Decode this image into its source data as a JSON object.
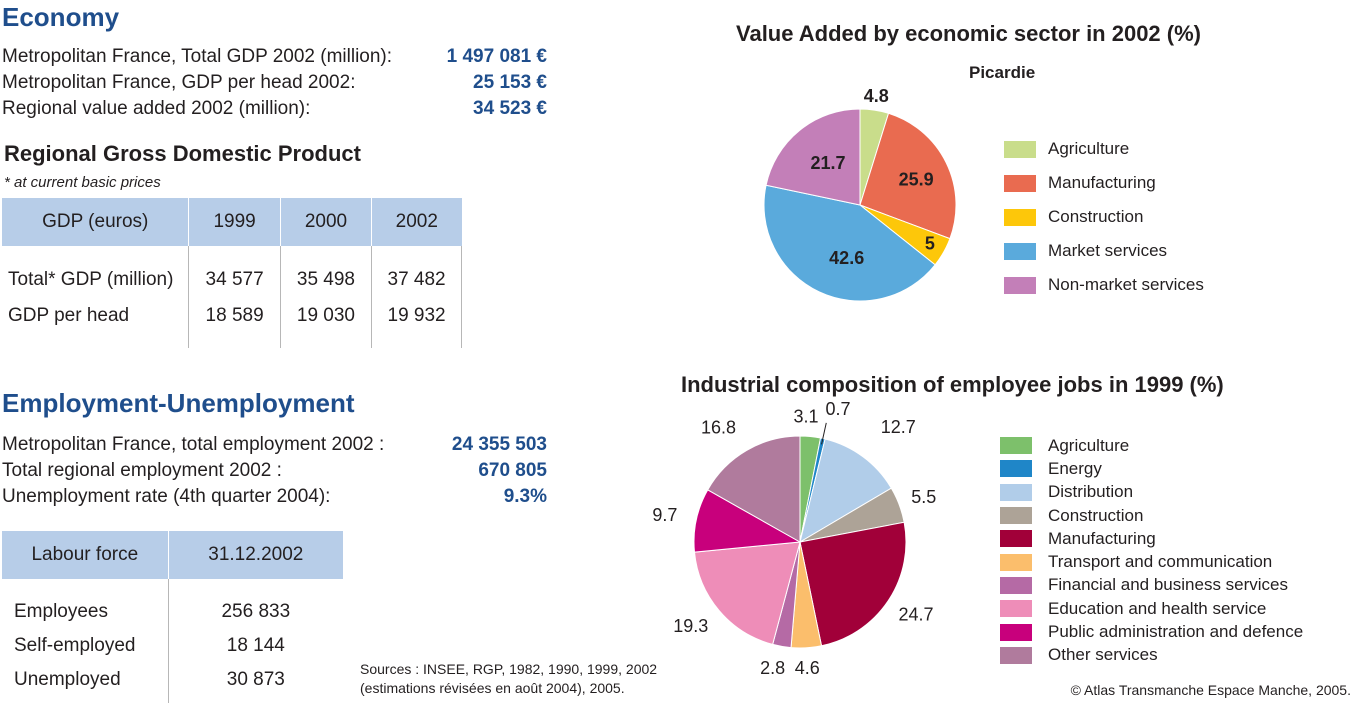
{
  "economy": {
    "title": "Economy",
    "rows": [
      {
        "label": "Metropolitan France, Total GDP 2002 (million):",
        "value": "1 497 081 €"
      },
      {
        "label": "Metropolitan France, GDP per head 2002:",
        "value": "25 153 €"
      },
      {
        "label": "Regional value added 2002 (million):",
        "value": "34 523 €"
      }
    ]
  },
  "gdp_table": {
    "title": "Regional Gross Domestic Product",
    "subtitle": "* at current basic prices",
    "headers": [
      "GDP (euros)",
      "1999",
      "2000",
      "2002"
    ],
    "rows": [
      [
        "Total* GDP (million)",
        "34 577",
        "35 498",
        "37 482"
      ],
      [
        "GDP per head",
        "18 589",
        "19 030",
        "19 932"
      ]
    ]
  },
  "employment": {
    "title": "Employment-Unemployment",
    "rows": [
      {
        "label": "Metropolitan France, total employment 2002 :",
        "value": "24 355 503"
      },
      {
        "label": "Total regional employment 2002 :",
        "value": "670 805"
      },
      {
        "label": "Unemployment rate (4th quarter 2004):",
        "value": "9.3%"
      }
    ]
  },
  "labour_table": {
    "headers": [
      "Labour force",
      "31.12.2002"
    ],
    "rows": [
      [
        "Employees",
        "256 833"
      ],
      [
        "Self-employed",
        "18 144"
      ],
      [
        "Unemployed",
        "30 873"
      ]
    ]
  },
  "sources": {
    "line1": "Sources : INSEE, RGP, 1982, 1990, 1999, 2002",
    "line2": "(estimations révisées en août 2004), 2005."
  },
  "copyright": "© Atlas Transmanche Espace Manche, 2005.",
  "chart_data": [
    {
      "type": "pie",
      "title": "Value Added by economic sector in 2002 (%)",
      "subtitle": "Picardie",
      "legend_position": "right",
      "categories": [
        "Agriculture",
        "Manufacturing",
        "Construction",
        "Market services",
        "Non-market services"
      ],
      "values": [
        4.8,
        25.9,
        5,
        42.6,
        21.7
      ],
      "value_labels": [
        "4.8",
        "25.9",
        "5",
        "42.6",
        "21.7"
      ],
      "colors": [
        "#c9dd8b",
        "#e96b50",
        "#fdc70a",
        "#5aaadc",
        "#c37fb8"
      ]
    },
    {
      "type": "pie",
      "title": "Industrial composition of employee jobs in 1999 (%)",
      "legend_position": "right",
      "categories": [
        "Agriculture",
        "Energy",
        "Distribution",
        "Construction",
        "Manufacturing",
        "Transport and communication",
        "Financial and business services",
        "Education and health service",
        "Public administration and defence",
        "Other services"
      ],
      "values": [
        3.1,
        0.7,
        12.7,
        5.5,
        24.7,
        4.6,
        2.8,
        19.3,
        9.7,
        16.8
      ],
      "value_labels": [
        "3.1",
        "0.7",
        "12.7",
        "5.5",
        "24.7",
        "4.6",
        "2.8",
        "19.3",
        "9.7",
        "16.8"
      ],
      "colors": [
        "#7dc06b",
        "#1f86c8",
        "#b1cde9",
        "#ada397",
        "#a10039",
        "#fbbe6c",
        "#b56aa5",
        "#ee8db8",
        "#c8007c",
        "#b07b9d"
      ]
    }
  ]
}
